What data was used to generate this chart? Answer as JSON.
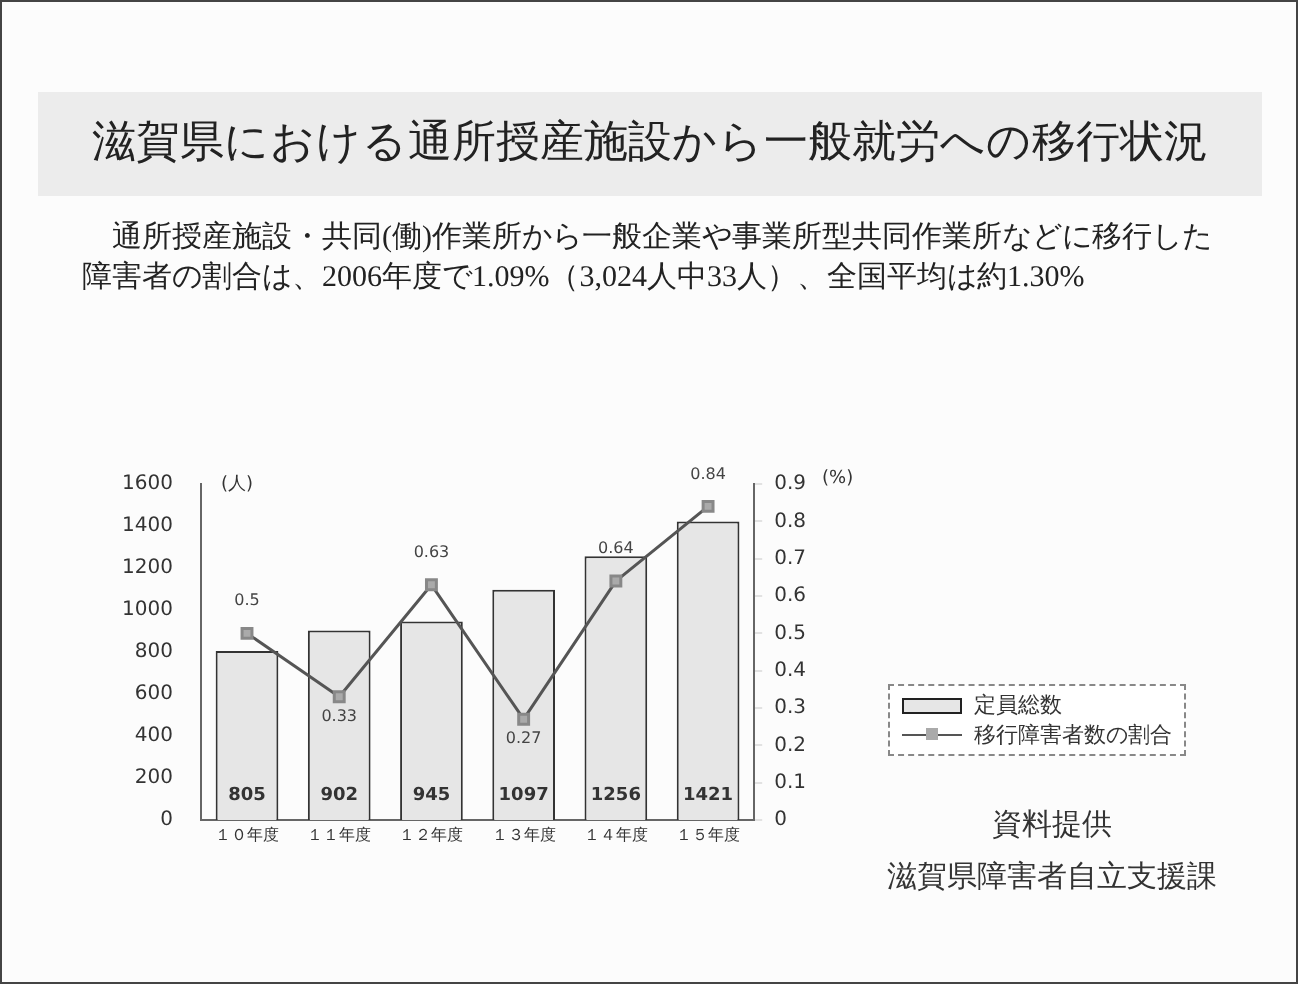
{
  "chart_data": {
    "type": "bar",
    "title": "滋賀県における通所授産施設から一般就労への移行状況",
    "subtitle": "通所授産施設・共同(働)作業所から一般企業や事業所型共同作業所などに移行した障害者の割合は、2006年度で1.09%（3,024人中33人）、全国平均は約1.30%",
    "categories": [
      "１０年度",
      "１１年度",
      "１２年度",
      "１３年度",
      "１４年度",
      "１５年度"
    ],
    "series": [
      {
        "name": "定員総数",
        "color": "#e6e6e6",
        "values": [
          805,
          902,
          945,
          1097,
          1256,
          1421
        ]
      },
      {
        "name": "移行障害者数の割合",
        "type": "line",
        "axis": "y2",
        "color": "#555555",
        "values": [
          0.5,
          0.33,
          0.63,
          0.27,
          0.64,
          0.84
        ]
      }
    ],
    "ylabel": "(人)",
    "y2label": "(%)",
    "ylim": [
      0,
      1600
    ],
    "yticks": [
      0,
      200,
      400,
      600,
      800,
      1000,
      1200,
      1400,
      1600
    ],
    "y2lim": [
      0,
      0.9
    ],
    "y2ticks": [
      0,
      0.1,
      0.2,
      0.3,
      0.4,
      0.5,
      0.6,
      0.7,
      0.8,
      0.9
    ],
    "data_labels": true,
    "marker": "square",
    "grid": false,
    "legend": "right",
    "annotations": [
      "資料提供",
      "滋賀県障害者自立支援課"
    ]
  }
}
